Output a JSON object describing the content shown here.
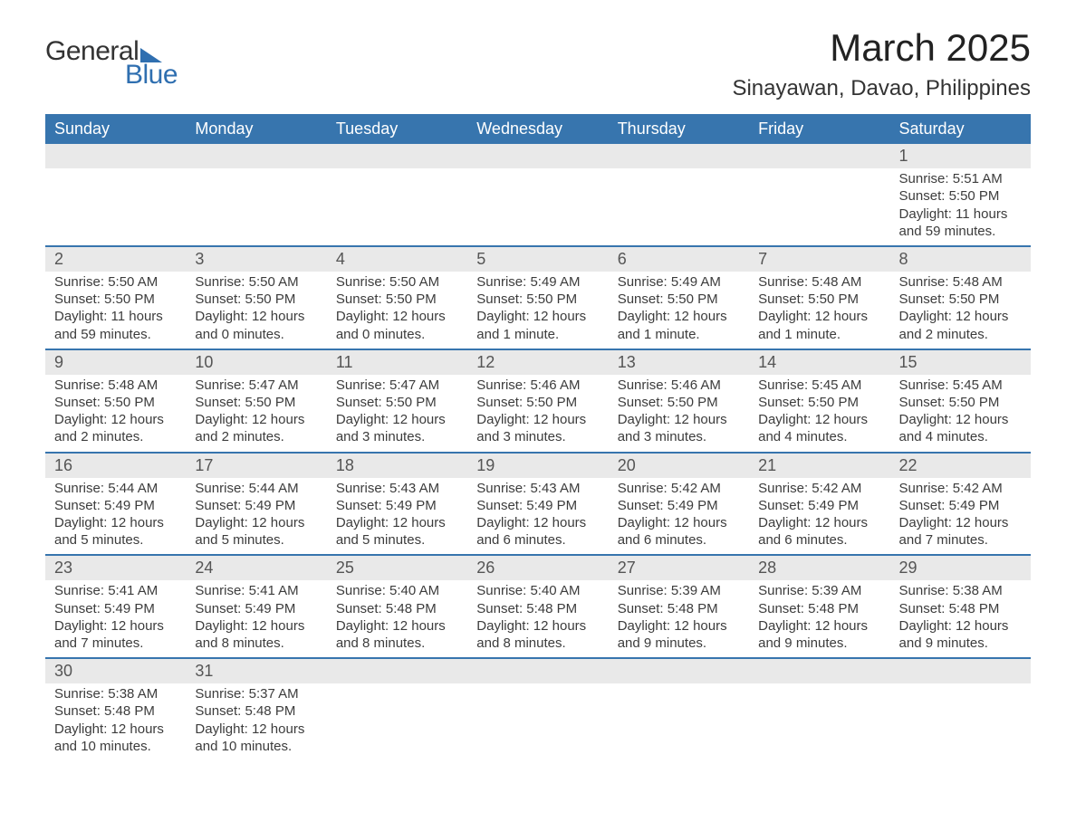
{
  "colors": {
    "header_bg": "#3775ae",
    "header_text": "#ffffff",
    "daynum_bg": "#e9e9e9",
    "text": "#3a3a3a",
    "accent": "#2f6fb0",
    "row_divider": "#3775ae",
    "page_bg": "#ffffff"
  },
  "typography": {
    "title_fontsize": 42,
    "location_fontsize": 24,
    "dayheader_fontsize": 18,
    "daynum_fontsize": 18,
    "body_fontsize": 15,
    "font_family": "Arial, Helvetica, sans-serif"
  },
  "logo": {
    "text_top": "General",
    "text_bottom": "Blue"
  },
  "title": "March 2025",
  "location": "Sinayawan, Davao, Philippines",
  "day_headers": [
    "Sunday",
    "Monday",
    "Tuesday",
    "Wednesday",
    "Thursday",
    "Friday",
    "Saturday"
  ],
  "weeks": [
    [
      null,
      null,
      null,
      null,
      null,
      null,
      {
        "n": "1",
        "sunrise": "5:51 AM",
        "sunset": "5:50 PM",
        "daylight": "11 hours and 59 minutes."
      }
    ],
    [
      {
        "n": "2",
        "sunrise": "5:50 AM",
        "sunset": "5:50 PM",
        "daylight": "11 hours and 59 minutes."
      },
      {
        "n": "3",
        "sunrise": "5:50 AM",
        "sunset": "5:50 PM",
        "daylight": "12 hours and 0 minutes."
      },
      {
        "n": "4",
        "sunrise": "5:50 AM",
        "sunset": "5:50 PM",
        "daylight": "12 hours and 0 minutes."
      },
      {
        "n": "5",
        "sunrise": "5:49 AM",
        "sunset": "5:50 PM",
        "daylight": "12 hours and 1 minute."
      },
      {
        "n": "6",
        "sunrise": "5:49 AM",
        "sunset": "5:50 PM",
        "daylight": "12 hours and 1 minute."
      },
      {
        "n": "7",
        "sunrise": "5:48 AM",
        "sunset": "5:50 PM",
        "daylight": "12 hours and 1 minute."
      },
      {
        "n": "8",
        "sunrise": "5:48 AM",
        "sunset": "5:50 PM",
        "daylight": "12 hours and 2 minutes."
      }
    ],
    [
      {
        "n": "9",
        "sunrise": "5:48 AM",
        "sunset": "5:50 PM",
        "daylight": "12 hours and 2 minutes."
      },
      {
        "n": "10",
        "sunrise": "5:47 AM",
        "sunset": "5:50 PM",
        "daylight": "12 hours and 2 minutes."
      },
      {
        "n": "11",
        "sunrise": "5:47 AM",
        "sunset": "5:50 PM",
        "daylight": "12 hours and 3 minutes."
      },
      {
        "n": "12",
        "sunrise": "5:46 AM",
        "sunset": "5:50 PM",
        "daylight": "12 hours and 3 minutes."
      },
      {
        "n": "13",
        "sunrise": "5:46 AM",
        "sunset": "5:50 PM",
        "daylight": "12 hours and 3 minutes."
      },
      {
        "n": "14",
        "sunrise": "5:45 AM",
        "sunset": "5:50 PM",
        "daylight": "12 hours and 4 minutes."
      },
      {
        "n": "15",
        "sunrise": "5:45 AM",
        "sunset": "5:50 PM",
        "daylight": "12 hours and 4 minutes."
      }
    ],
    [
      {
        "n": "16",
        "sunrise": "5:44 AM",
        "sunset": "5:49 PM",
        "daylight": "12 hours and 5 minutes."
      },
      {
        "n": "17",
        "sunrise": "5:44 AM",
        "sunset": "5:49 PM",
        "daylight": "12 hours and 5 minutes."
      },
      {
        "n": "18",
        "sunrise": "5:43 AM",
        "sunset": "5:49 PM",
        "daylight": "12 hours and 5 minutes."
      },
      {
        "n": "19",
        "sunrise": "5:43 AM",
        "sunset": "5:49 PM",
        "daylight": "12 hours and 6 minutes."
      },
      {
        "n": "20",
        "sunrise": "5:42 AM",
        "sunset": "5:49 PM",
        "daylight": "12 hours and 6 minutes."
      },
      {
        "n": "21",
        "sunrise": "5:42 AM",
        "sunset": "5:49 PM",
        "daylight": "12 hours and 6 minutes."
      },
      {
        "n": "22",
        "sunrise": "5:42 AM",
        "sunset": "5:49 PM",
        "daylight": "12 hours and 7 minutes."
      }
    ],
    [
      {
        "n": "23",
        "sunrise": "5:41 AM",
        "sunset": "5:49 PM",
        "daylight": "12 hours and 7 minutes."
      },
      {
        "n": "24",
        "sunrise": "5:41 AM",
        "sunset": "5:49 PM",
        "daylight": "12 hours and 8 minutes."
      },
      {
        "n": "25",
        "sunrise": "5:40 AM",
        "sunset": "5:48 PM",
        "daylight": "12 hours and 8 minutes."
      },
      {
        "n": "26",
        "sunrise": "5:40 AM",
        "sunset": "5:48 PM",
        "daylight": "12 hours and 8 minutes."
      },
      {
        "n": "27",
        "sunrise": "5:39 AM",
        "sunset": "5:48 PM",
        "daylight": "12 hours and 9 minutes."
      },
      {
        "n": "28",
        "sunrise": "5:39 AM",
        "sunset": "5:48 PM",
        "daylight": "12 hours and 9 minutes."
      },
      {
        "n": "29",
        "sunrise": "5:38 AM",
        "sunset": "5:48 PM",
        "daylight": "12 hours and 9 minutes."
      }
    ],
    [
      {
        "n": "30",
        "sunrise": "5:38 AM",
        "sunset": "5:48 PM",
        "daylight": "12 hours and 10 minutes."
      },
      {
        "n": "31",
        "sunrise": "5:37 AM",
        "sunset": "5:48 PM",
        "daylight": "12 hours and 10 minutes."
      },
      null,
      null,
      null,
      null,
      null
    ]
  ],
  "labels": {
    "sunrise": "Sunrise: ",
    "sunset": "Sunset: ",
    "daylight": "Daylight: "
  }
}
